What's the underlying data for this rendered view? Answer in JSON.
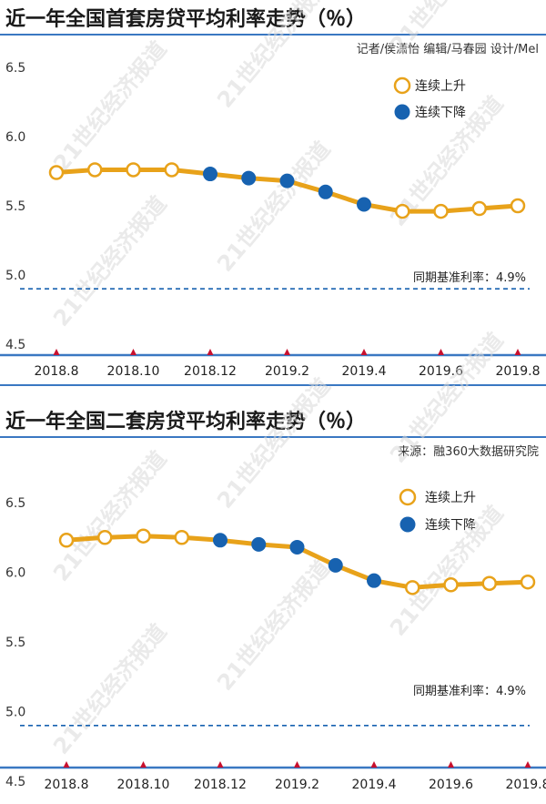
{
  "colors": {
    "rising_marker": "#e8a21a",
    "falling_marker": "#1762b0",
    "line": "#e8a21a",
    "axis": "#3a78c2",
    "tick_triangle": "#c8102e",
    "reference_line": "#1762b0"
  },
  "watermark_text": "21世纪经济报道",
  "chart_data": [
    {
      "type": "line",
      "title": "近一年全国首套房贷平均利率走势（％）",
      "credit": "记者/侯潇怡  编辑/马春园  设计/Mel",
      "x": [
        "2018.8",
        "2018.9",
        "2018.10",
        "2018.11",
        "2018.12",
        "2019.1",
        "2019.2",
        "2019.3",
        "2019.4",
        "2019.5",
        "2019.6",
        "2019.7",
        "2019.8"
      ],
      "x_tick_labels": [
        "2018.8",
        "2018.10",
        "2018.12",
        "2019.2",
        "2019.4",
        "2019.6",
        "2019.8"
      ],
      "y_tick_labels": [
        "6.5",
        "6.0",
        "5.5",
        "5.0",
        "4.5"
      ],
      "y_ticks": [
        6.5,
        6.0,
        5.5,
        5.0,
        4.5
      ],
      "ylim": [
        4.45,
        6.5
      ],
      "series": [
        {
          "values": [
            5.74,
            5.76,
            5.76,
            5.76,
            5.73,
            5.7,
            5.68,
            5.6,
            5.51,
            5.46,
            5.46,
            5.48,
            5.5
          ],
          "trend": [
            "up",
            "up",
            "up",
            "up",
            "down",
            "down",
            "down",
            "down",
            "down",
            "up",
            "up",
            "up",
            "up"
          ]
        }
      ],
      "legend": {
        "items": [
          {
            "label": "连续上升",
            "marker": "hollow"
          },
          {
            "label": "连续下降",
            "marker": "filled"
          }
        ],
        "placement": "top-right"
      },
      "reference_line": {
        "value": 4.9,
        "label": "同期基准利率：4.9%"
      },
      "grid": false
    },
    {
      "type": "line",
      "title": "近一年全国二套房贷平均利率走势（％）",
      "credit": "来源：融360大数据研究院",
      "x": [
        "2018.8",
        "2018.9",
        "2018.10",
        "2018.11",
        "2018.12",
        "2019.1",
        "2019.2",
        "2019.3",
        "2019.4",
        "2019.5",
        "2019.6",
        "2019.7",
        "2019.8"
      ],
      "x_tick_labels": [
        "2018.8",
        "2018.10",
        "2018.12",
        "2019.2",
        "2019.4",
        "2019.6",
        "2019.8"
      ],
      "y_tick_labels": [
        "6.5",
        "6.0",
        "5.5",
        "5.0",
        "4.5"
      ],
      "y_ticks": [
        6.5,
        6.0,
        5.5,
        5.0,
        4.5
      ],
      "ylim": [
        4.45,
        6.5
      ],
      "series": [
        {
          "values": [
            6.23,
            6.25,
            6.26,
            6.25,
            6.23,
            6.2,
            6.18,
            6.05,
            5.94,
            5.89,
            5.91,
            5.92,
            5.93
          ],
          "trend": [
            "up",
            "up",
            "up",
            "up",
            "down",
            "down",
            "down",
            "down",
            "down",
            "up",
            "up",
            "up",
            "up"
          ]
        }
      ],
      "legend": {
        "items": [
          {
            "label": "连续上升",
            "marker": "hollow"
          },
          {
            "label": "连续下降",
            "marker": "filled"
          }
        ],
        "placement": "top-right"
      },
      "reference_line": {
        "value": 4.9,
        "label": "同期基准利率：4.9%"
      },
      "grid": false
    }
  ]
}
